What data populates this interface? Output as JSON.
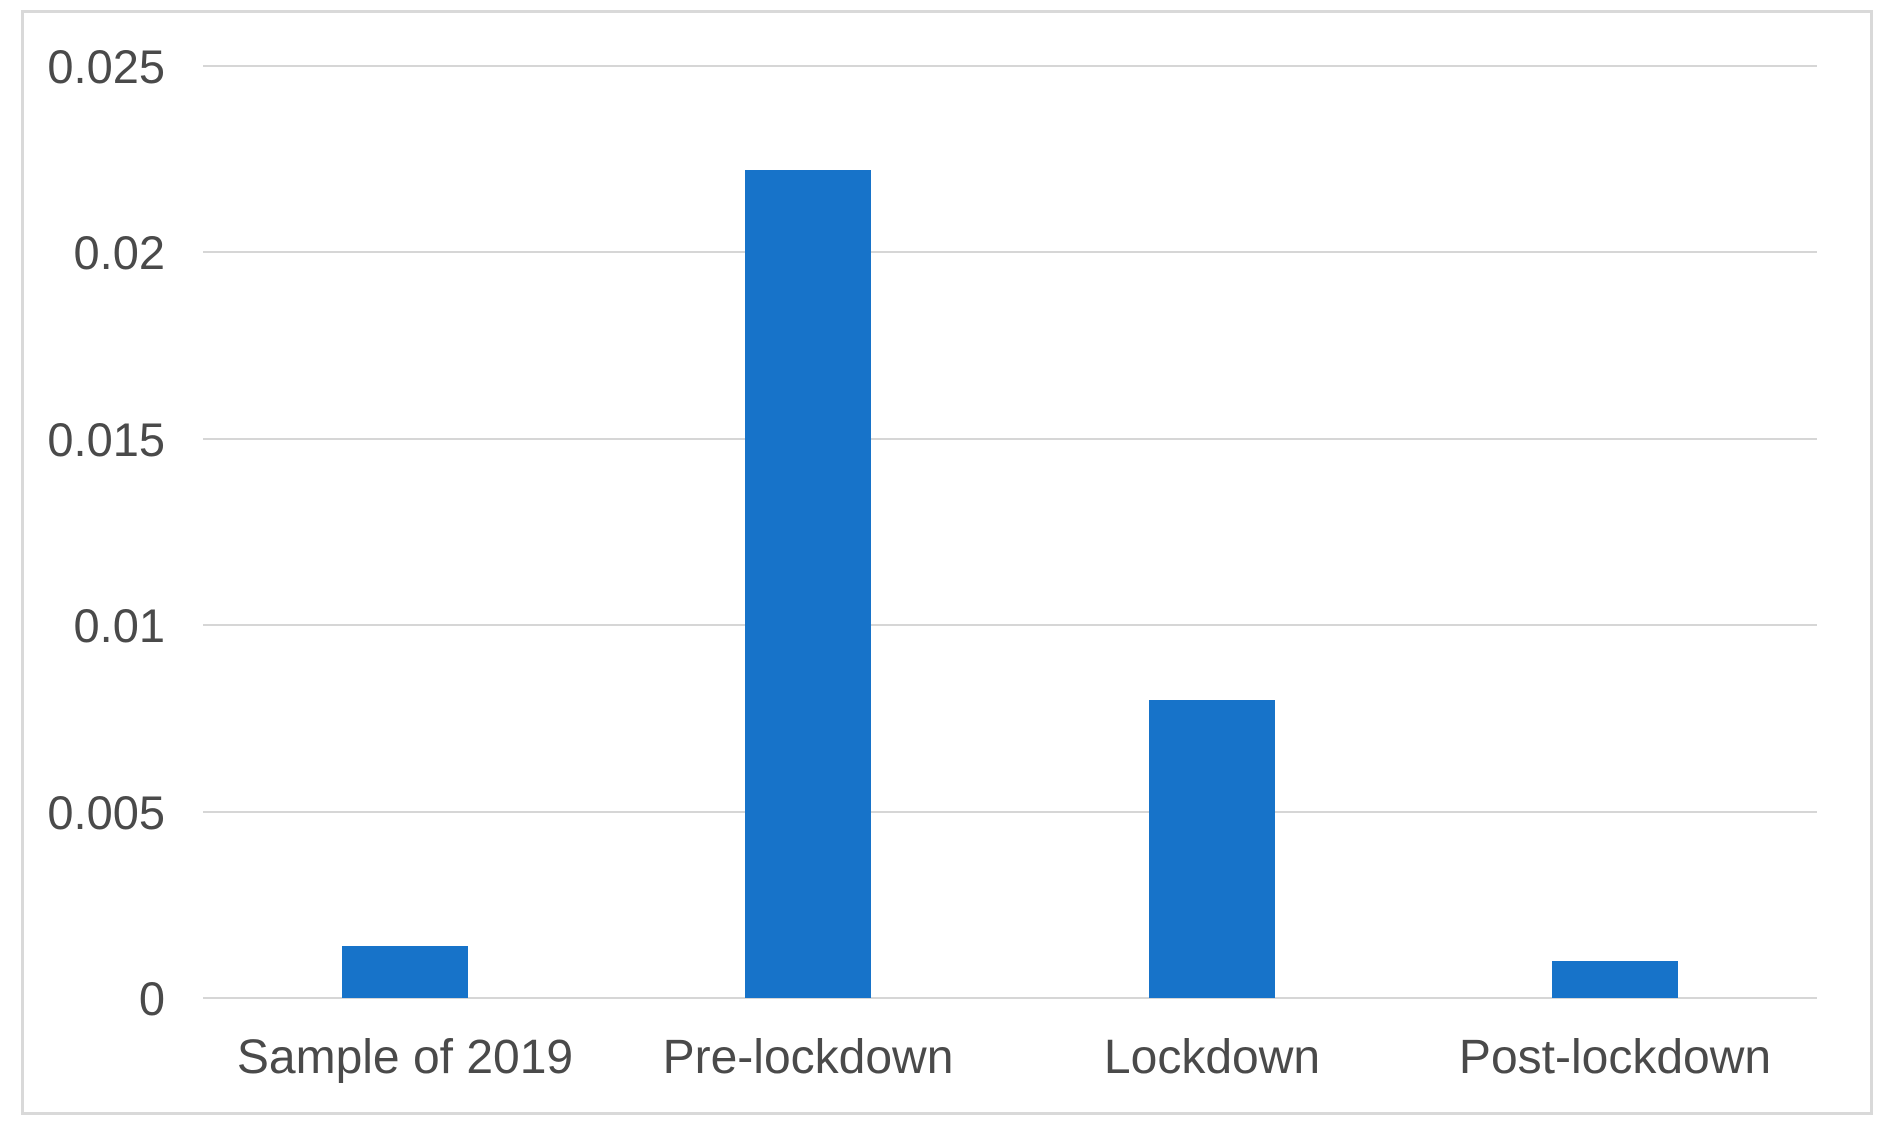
{
  "chart_data": {
    "type": "bar",
    "categories": [
      "Sample of 2019",
      "Pre-lockdown",
      "Lockdown",
      "Post-lockdown"
    ],
    "values": [
      0.0014,
      0.0222,
      0.008,
      0.001
    ],
    "title": "",
    "xlabel": "",
    "ylabel": "",
    "ylim": [
      0,
      0.025
    ],
    "yticks": [
      {
        "value": 0,
        "label": "0"
      },
      {
        "value": 0.005,
        "label": "0.005"
      },
      {
        "value": 0.01,
        "label": "0.01"
      },
      {
        "value": 0.015,
        "label": "0.015"
      },
      {
        "value": 0.02,
        "label": "0.02"
      },
      {
        "value": 0.025,
        "label": "0.025"
      }
    ],
    "grid": true,
    "legend_visible": false,
    "colors": {
      "bar": "#1773C9",
      "gridline": "#D6D6D6",
      "frame_border": "#D9D9D9",
      "label_text": "#4A4A4A"
    }
  }
}
